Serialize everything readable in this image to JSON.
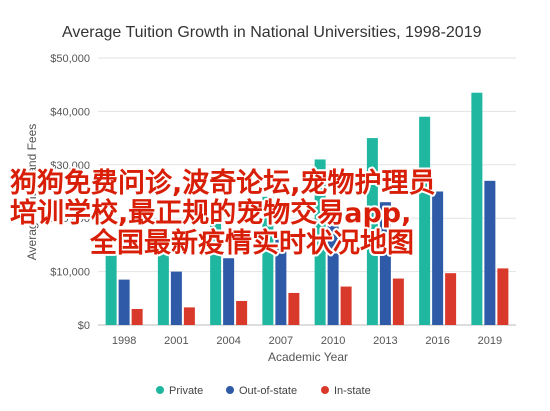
{
  "chart_data": {
    "type": "bar",
    "title": "Average Tuition Growth in National Universities, 1998-2019",
    "xlabel": "Academic Year",
    "ylabel": "Average Tuition and Fees",
    "ylim": [
      0,
      50000
    ],
    "y_ticks": [
      "$0",
      "$10,000",
      "$20,000",
      "$30,000",
      "$40,000",
      "$50,000"
    ],
    "y_tick_values": [
      0,
      10000,
      20000,
      30000,
      40000,
      50000
    ],
    "categories": [
      "1998",
      "2001",
      "2004",
      "2007",
      "2010",
      "2013",
      "2016",
      "2019"
    ],
    "grid": true,
    "legend_position": "bottom",
    "series": [
      {
        "name": "Private",
        "color": "#1fb7a0",
        "values": [
          14000,
          17000,
          20000,
          24000,
          31000,
          35000,
          39000,
          43500
        ]
      },
      {
        "name": "Out-of-state",
        "color": "#2f5aa8",
        "values": [
          8500,
          10000,
          12500,
          16000,
          20000,
          23000,
          25000,
          27000
        ]
      },
      {
        "name": "In-state",
        "color": "#d9392b",
        "values": [
          3000,
          3300,
          4500,
          6000,
          7200,
          8700,
          9700,
          10600
        ]
      }
    ]
  },
  "overlay_text": {
    "line1": "狗狗免费问诊,波奇论坛,宠物护理员",
    "line2": "培训学校,最正规的宠物交易app,",
    "line3": "全国最新疫情实时状况地图"
  }
}
